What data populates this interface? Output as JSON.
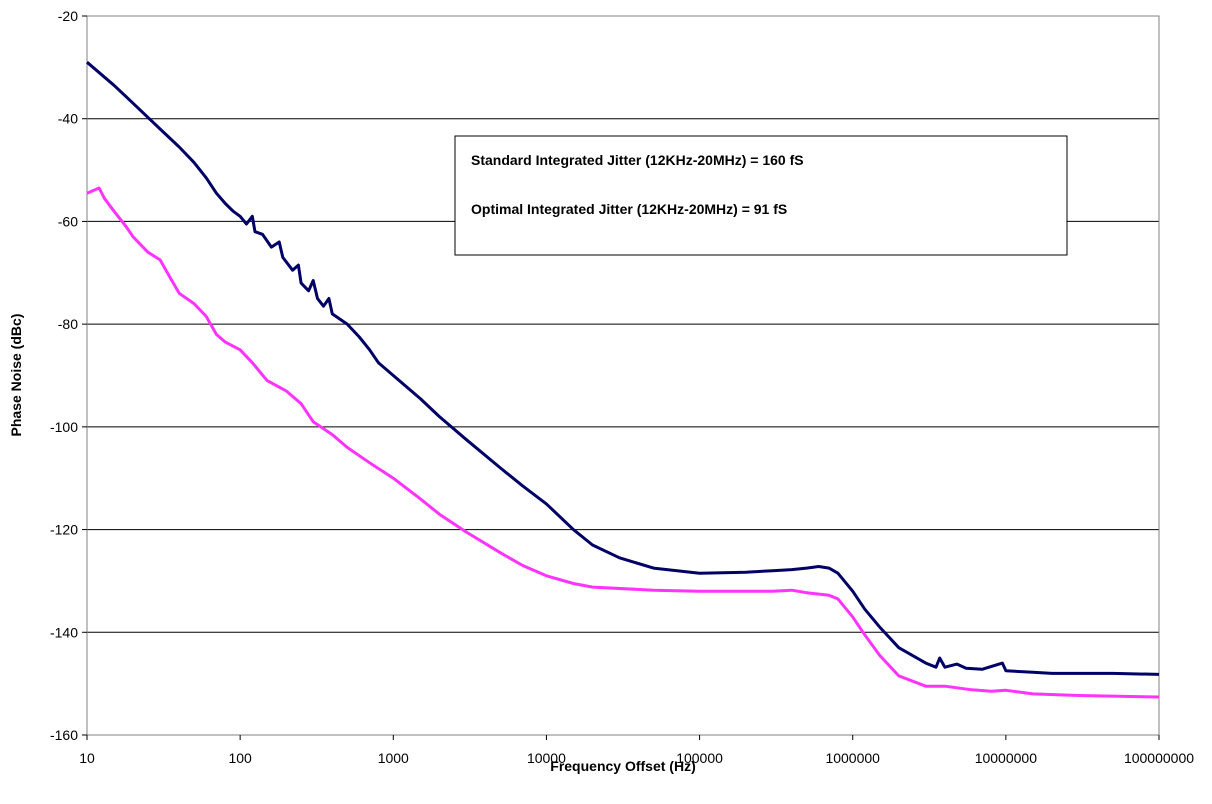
{
  "chart_data": {
    "type": "line",
    "title": "",
    "xlabel": "Frequency Offset (Hz)",
    "ylabel": "Phase Noise (dBc)",
    "x_scale": "log",
    "xlim": [
      10,
      100000000
    ],
    "ylim": [
      -160,
      -20
    ],
    "x_ticks": [
      "10",
      "100",
      "1000",
      "10000",
      "100000",
      "1000000",
      "10000000",
      "100000000"
    ],
    "y_ticks": [
      "-20",
      "-40",
      "-60",
      "-80",
      "-100",
      "-120",
      "-140",
      "-160"
    ],
    "grid": "horizontal",
    "annotations": [
      "Standard Integrated Jitter (12KHz-20MHz) = 160 fS",
      "Optimal Integrated Jitter (12KHz-20MHz) = 91 fS"
    ],
    "series": [
      {
        "color": "#000066",
        "points": [
          [
            10,
            -29
          ],
          [
            15,
            -33.5
          ],
          [
            20,
            -37
          ],
          [
            30,
            -42
          ],
          [
            40,
            -45.5
          ],
          [
            50,
            -48.5
          ],
          [
            60,
            -51.5
          ],
          [
            70,
            -54.5
          ],
          [
            80,
            -56.5
          ],
          [
            90,
            -58
          ],
          [
            100,
            -59
          ],
          [
            110,
            -60.5
          ],
          [
            120,
            -59
          ],
          [
            125,
            -62
          ],
          [
            140,
            -62.5
          ],
          [
            160,
            -65
          ],
          [
            180,
            -64
          ],
          [
            190,
            -67
          ],
          [
            220,
            -69.5
          ],
          [
            240,
            -68.5
          ],
          [
            250,
            -72
          ],
          [
            280,
            -73.5
          ],
          [
            300,
            -71.5
          ],
          [
            320,
            -75
          ],
          [
            350,
            -76.5
          ],
          [
            380,
            -75
          ],
          [
            400,
            -78
          ],
          [
            500,
            -80
          ],
          [
            600,
            -82.5
          ],
          [
            700,
            -85
          ],
          [
            800,
            -87.5
          ],
          [
            1000,
            -90
          ],
          [
            1500,
            -94.5
          ],
          [
            2000,
            -98
          ],
          [
            3000,
            -102.5
          ],
          [
            5000,
            -108
          ],
          [
            7000,
            -111.5
          ],
          [
            10000,
            -115
          ],
          [
            15000,
            -120
          ],
          [
            20000,
            -123
          ],
          [
            30000,
            -125.5
          ],
          [
            50000,
            -127.5
          ],
          [
            100000,
            -128.5
          ],
          [
            200000,
            -128.3
          ],
          [
            300000,
            -128
          ],
          [
            400000,
            -127.8
          ],
          [
            500000,
            -127.5
          ],
          [
            600000,
            -127.2
          ],
          [
            700000,
            -127.5
          ],
          [
            800000,
            -128.5
          ],
          [
            1000000,
            -132
          ],
          [
            1200000,
            -135.5
          ],
          [
            1500000,
            -139
          ],
          [
            2000000,
            -143
          ],
          [
            3000000,
            -146
          ],
          [
            3500000,
            -146.8
          ],
          [
            3700000,
            -145
          ],
          [
            4000000,
            -146.8
          ],
          [
            4800000,
            -146.2
          ],
          [
            5500000,
            -147
          ],
          [
            7000000,
            -147.2
          ],
          [
            9500000,
            -146
          ],
          [
            10000000,
            -147.5
          ],
          [
            15000000,
            -147.8
          ],
          [
            20000000,
            -148
          ],
          [
            50000000,
            -148
          ],
          [
            100000000,
            -148.2
          ]
        ]
      },
      {
        "color": "#FF33FF",
        "points": [
          [
            10,
            -54.5
          ],
          [
            12,
            -53.5
          ],
          [
            13,
            -55.5
          ],
          [
            15,
            -58
          ],
          [
            18,
            -61
          ],
          [
            20,
            -63
          ],
          [
            25,
            -66
          ],
          [
            30,
            -67.5
          ],
          [
            35,
            -71
          ],
          [
            40,
            -74
          ],
          [
            50,
            -76
          ],
          [
            60,
            -78.5
          ],
          [
            70,
            -82
          ],
          [
            80,
            -83.5
          ],
          [
            100,
            -85
          ],
          [
            120,
            -87.5
          ],
          [
            150,
            -91
          ],
          [
            200,
            -93
          ],
          [
            250,
            -95.5
          ],
          [
            300,
            -99
          ],
          [
            400,
            -101.5
          ],
          [
            500,
            -104
          ],
          [
            700,
            -107
          ],
          [
            1000,
            -110
          ],
          [
            1500,
            -114
          ],
          [
            2000,
            -117
          ],
          [
            3000,
            -120.5
          ],
          [
            5000,
            -124.5
          ],
          [
            7000,
            -127
          ],
          [
            10000,
            -129
          ],
          [
            15000,
            -130.5
          ],
          [
            20000,
            -131.2
          ],
          [
            50000,
            -131.8
          ],
          [
            100000,
            -132
          ],
          [
            200000,
            -132
          ],
          [
            300000,
            -132
          ],
          [
            400000,
            -131.8
          ],
          [
            500000,
            -132.3
          ],
          [
            700000,
            -132.8
          ],
          [
            800000,
            -133.5
          ],
          [
            1000000,
            -137
          ],
          [
            1200000,
            -140.5
          ],
          [
            1500000,
            -144.5
          ],
          [
            2000000,
            -148.5
          ],
          [
            3000000,
            -150.5
          ],
          [
            4000000,
            -150.5
          ],
          [
            6000000,
            -151.2
          ],
          [
            8000000,
            -151.5
          ],
          [
            10000000,
            -151.3
          ],
          [
            15000000,
            -152
          ],
          [
            30000000,
            -152.3
          ],
          [
            100000000,
            -152.6
          ]
        ]
      }
    ]
  }
}
